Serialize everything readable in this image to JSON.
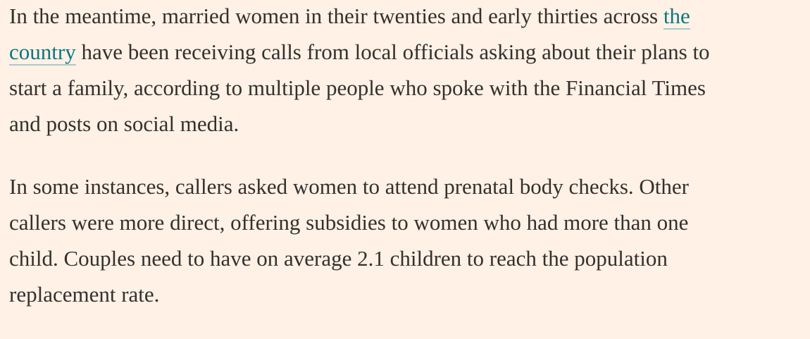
{
  "paragraphs": [
    {
      "lines": [
        [
          {
            "text": "In the meantime, married women in their twenties and early thirties across "
          },
          {
            "link": "the"
          }
        ],
        [
          {
            "link": "country"
          },
          {
            "text": " have been receiving calls from local officials asking about their plans to"
          }
        ],
        [
          {
            "text": "start a family, according to multiple people who spoke with the Financial Times"
          }
        ],
        [
          {
            "text": "and posts on social media."
          }
        ]
      ]
    },
    {
      "lines": [
        [
          {
            "text": "In some instances, callers asked women to attend prenatal body checks. Other"
          }
        ],
        [
          {
            "text": "callers were more direct, offering subsidies to women who had more than one"
          }
        ],
        [
          {
            "text": "child. Couples need to have on average 2.1 children to reach the population"
          }
        ],
        [
          {
            "text": "replacement rate."
          }
        ]
      ]
    }
  ]
}
